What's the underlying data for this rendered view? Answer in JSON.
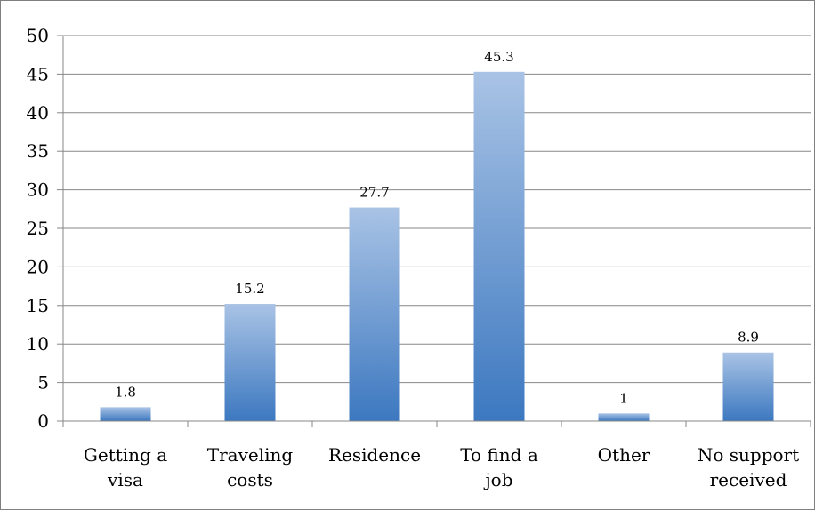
{
  "chart_data": {
    "type": "bar",
    "title": "",
    "xlabel": "",
    "ylabel": "",
    "categories": [
      [
        "Getting a",
        "visa"
      ],
      [
        "Traveling",
        "costs"
      ],
      [
        "Residence"
      ],
      [
        "To find a",
        "job"
      ],
      [
        "Other"
      ],
      [
        "No support",
        "received"
      ]
    ],
    "values": [
      1.8,
      15.2,
      27.7,
      45.3,
      1,
      8.9
    ],
    "value_labels": [
      "1.8",
      "15.2",
      "27.7",
      "45.3",
      "1",
      "8.9"
    ],
    "ylim": [
      0,
      50
    ],
    "yticks": [
      0,
      5,
      10,
      15,
      20,
      25,
      30,
      35,
      40,
      45,
      50
    ],
    "grid": true,
    "legend": "none",
    "colors": {
      "bar_top": "#a9c3e5",
      "bar_bottom": "#3c78c0",
      "grid": "#878787",
      "axis": "#878787"
    }
  }
}
